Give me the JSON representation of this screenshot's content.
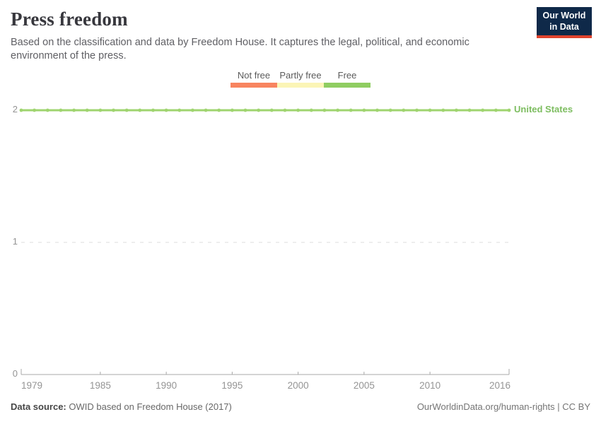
{
  "header": {
    "title": "Press freedom",
    "subtitle": "Based on the classification and data by Freedom House. It captures the legal, political, and economic environment of the press."
  },
  "logo": {
    "line1": "Our World",
    "line2": "in Data",
    "bg_color": "#0f2949",
    "stripe_color": "#e0432d"
  },
  "legend": {
    "items": [
      {
        "label": "Not free",
        "color": "#f8845f"
      },
      {
        "label": "Partly free",
        "color": "#fbf5b6"
      },
      {
        "label": "Free",
        "color": "#8fcd61"
      }
    ]
  },
  "chart_data": {
    "type": "line",
    "title": "Press freedom",
    "xlabel": "",
    "ylabel": "",
    "x_range": [
      1979,
      2016
    ],
    "y_range": [
      0,
      2
    ],
    "x_ticks": [
      1979,
      1985,
      1990,
      1995,
      2000,
      2005,
      2010,
      2016
    ],
    "y_ticks": [
      0,
      1,
      2
    ],
    "grid": "dashed-horizontal",
    "legend_position": "top-center",
    "series": [
      {
        "name": "United States",
        "color": "#9fd46f",
        "label_color": "#7dbd60",
        "x": [
          1979,
          1980,
          1981,
          1982,
          1983,
          1984,
          1985,
          1986,
          1987,
          1988,
          1989,
          1990,
          1991,
          1992,
          1993,
          1994,
          1995,
          1996,
          1997,
          1998,
          1999,
          2000,
          2001,
          2002,
          2003,
          2004,
          2005,
          2006,
          2007,
          2008,
          2009,
          2010,
          2011,
          2012,
          2013,
          2014,
          2015,
          2016
        ],
        "values": [
          2,
          2,
          2,
          2,
          2,
          2,
          2,
          2,
          2,
          2,
          2,
          2,
          2,
          2,
          2,
          2,
          2,
          2,
          2,
          2,
          2,
          2,
          2,
          2,
          2,
          2,
          2,
          2,
          2,
          2,
          2,
          2,
          2,
          2,
          2,
          2,
          2,
          2
        ]
      }
    ]
  },
  "axis_colors": {
    "axis_line": "#a8a8a8",
    "gridline": "#dcdcdc",
    "tick_label": "#949494"
  },
  "footer": {
    "datasource_label": "Data source:",
    "datasource_text": "OWID based on Freedom House (2017)",
    "link_text": "OurWorldinData.org/human-rights",
    "right_suffix": " | CC BY"
  }
}
